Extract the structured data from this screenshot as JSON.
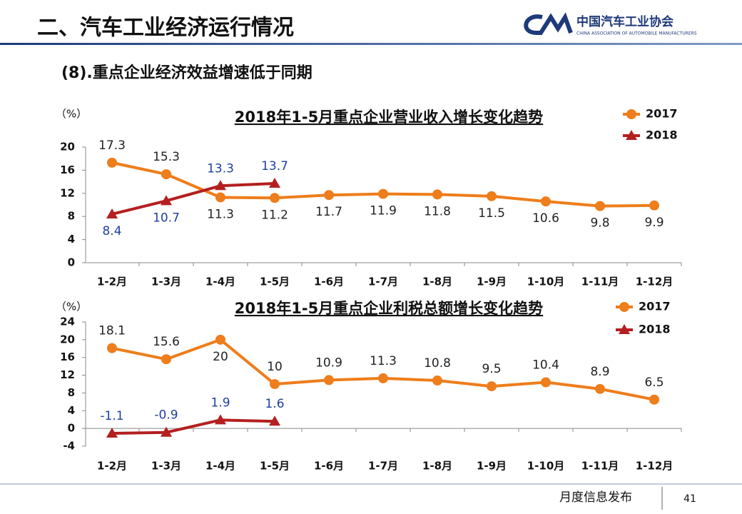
{
  "header": {
    "title": "二、汽车工业经济运行情况",
    "logo_name": "中国汽车工业协会",
    "logo_english": "CHINA ASSOCIATION OF AUTOMOBILE MANUFACTURERS"
  },
  "subtitle": "(8).重点企业经济效益增速低于同期",
  "chart_data": [
    {
      "type": "line",
      "title": "2018年1-5月重点企业营业收入增长变化趋势",
      "y_label": "（%）",
      "categories": [
        "1-2月",
        "1-3月",
        "1-4月",
        "1-5月",
        "1-6月",
        "1-7月",
        "1-8月",
        "1-9月",
        "1-10月",
        "1-11月",
        "1-12月"
      ],
      "series": [
        {
          "name": "2017",
          "color": "#ee7d1b",
          "marker": "circle",
          "values": [
            17.3,
            15.3,
            11.3,
            11.2,
            11.7,
            11.9,
            11.8,
            11.5,
            10.6,
            9.8,
            9.9
          ]
        },
        {
          "name": "2018",
          "color": "#b41f1f",
          "marker": "triangle",
          "values": [
            8.4,
            10.7,
            13.3,
            13.7,
            null,
            null,
            null,
            null,
            null,
            null,
            null
          ]
        }
      ],
      "ylim": [
        0,
        20
      ],
      "yticks": [
        0,
        4,
        8,
        12,
        16,
        20
      ],
      "grid": false,
      "legend": "top-right"
    },
    {
      "type": "line",
      "title": "2018年1-5月重点企业利税总额增长变化趋势",
      "y_label": "（%）",
      "categories": [
        "1-2月",
        "1-3月",
        "1-4月",
        "1-5月",
        "1-6月",
        "1-7月",
        "1-8月",
        "1-9月",
        "1-10月",
        "1-11月",
        "1-12月"
      ],
      "series": [
        {
          "name": "2017",
          "color": "#ee7d1b",
          "marker": "circle",
          "values": [
            18.1,
            15.6,
            20,
            10,
            10.9,
            11.3,
            10.8,
            9.5,
            10.4,
            8.9,
            6.5
          ]
        },
        {
          "name": "2018",
          "color": "#b41f1f",
          "marker": "triangle",
          "values": [
            -1.1,
            -0.9,
            1.9,
            1.6,
            null,
            null,
            null,
            null,
            null,
            null,
            null
          ]
        }
      ],
      "ylim": [
        -4,
        24
      ],
      "yticks": [
        -4,
        0,
        4,
        8,
        12,
        16,
        20,
        24
      ],
      "grid": false,
      "legend": "top-right"
    }
  ],
  "footer": {
    "text": "月度信息发布",
    "page": "41"
  }
}
